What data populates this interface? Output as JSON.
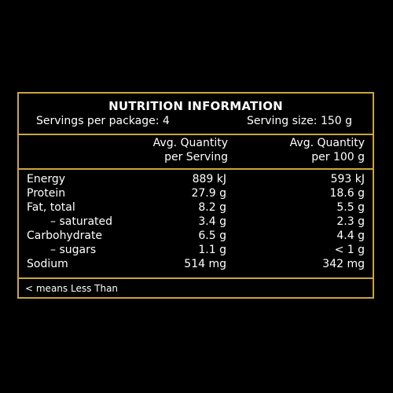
{
  "panel": {
    "title": "NUTRITION INFORMATION",
    "servings_per_package": "Servings per package: 4",
    "serving_size": "Serving size: 150 g",
    "col1_header_line1": "Avg. Quantity",
    "col1_header_line2": "per Serving",
    "col2_header_line1": "Avg. Quantity",
    "col2_header_line2": "per 100 g",
    "rows": [
      {
        "name": "Energy",
        "per_serving": "889 kJ",
        "per_100g": "593 kJ"
      },
      {
        "name": "Protein",
        "per_serving": "27.9 g",
        "per_100g": "18.6 g"
      },
      {
        "name": "Fat, total",
        "per_serving": "8.2 g",
        "per_100g": "5.5 g"
      },
      {
        "name": "– saturated",
        "per_serving": "3.4 g",
        "per_100g": "2.3 g"
      },
      {
        "name": "Carbohydrate",
        "per_serving": "6.5 g",
        "per_100g": "4.4 g"
      },
      {
        "name": "– sugars",
        "per_serving": "1.1 g",
        "per_100g": "< 1 g"
      },
      {
        "name": "Sodium",
        "per_serving": "514 mg",
        "per_100g": "342 mg"
      }
    ],
    "footnote": "< means Less Than"
  },
  "colors": {
    "border": "#c9a73e",
    "background": "#000000",
    "text": "#ffffff"
  }
}
